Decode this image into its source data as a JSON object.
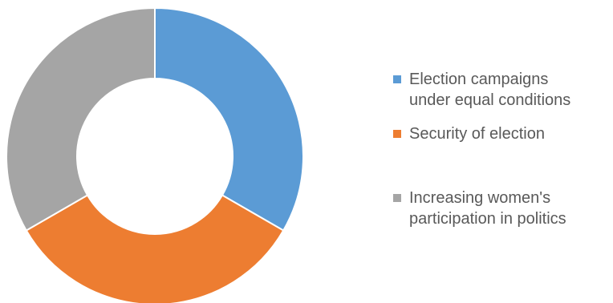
{
  "chart_data": {
    "type": "donut",
    "title": "",
    "categories": [
      "Election campaigns under equal conditions",
      "Security of election",
      "Increasing women's participation in politics"
    ],
    "values": [
      33.3,
      33.3,
      33.3
    ],
    "colors": [
      "#5B9BD5",
      "#ED7D31",
      "#A5A5A5"
    ],
    "legend": {
      "position": "right",
      "items": [
        {
          "label_lines": [
            "Election campaigns",
            "under equal conditions"
          ],
          "color": "#5B9BD5"
        },
        {
          "label_lines": [
            "Security of election"
          ],
          "color": "#ED7D31"
        },
        {
          "label_lines": [
            "Increasing women's",
            "participation in politics"
          ],
          "color": "#A5A5A5"
        }
      ]
    }
  }
}
